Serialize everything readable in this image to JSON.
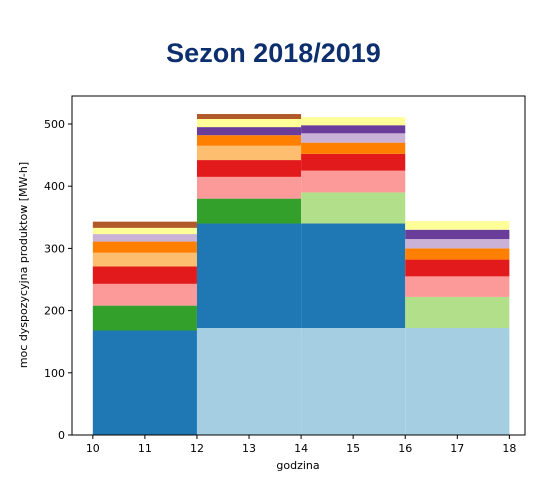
{
  "page": {
    "title": "Sezon 2018/2019"
  },
  "chart_data": {
    "type": "bar",
    "title": "Sezon 2018/2019",
    "xlabel": "godzina",
    "ylabel": "moc dyspozycyjna produktow [MW-h]",
    "xlim": [
      9.6,
      18.3
    ],
    "ylim": [
      0,
      545
    ],
    "xticks": [
      10,
      11,
      12,
      13,
      14,
      15,
      16,
      17,
      18
    ],
    "yticks": [
      0,
      100,
      200,
      300,
      400,
      500
    ],
    "grid": false,
    "legend": "none",
    "bars": [
      {
        "x0": 10,
        "x1": 12,
        "segments": [
          {
            "value": 168,
            "color": "#1f78b4"
          },
          {
            "value": 40,
            "color": "#33a02c"
          },
          {
            "value": 35,
            "color": "#fb9a99"
          },
          {
            "value": 28,
            "color": "#e31a1c"
          },
          {
            "value": 22,
            "color": "#fdbf6f"
          },
          {
            "value": 18,
            "color": "#ff7f00"
          },
          {
            "value": 12,
            "color": "#cab2d6"
          },
          {
            "value": 10,
            "color": "#ffff99"
          },
          {
            "value": 10,
            "color": "#b15928"
          }
        ]
      },
      {
        "x0": 12,
        "x1": 14,
        "segments": [
          {
            "value": 172,
            "color": "#a6cee3"
          },
          {
            "value": 168,
            "color": "#1f78b4"
          },
          {
            "value": 40,
            "color": "#33a02c"
          },
          {
            "value": 35,
            "color": "#fb9a99"
          },
          {
            "value": 27,
            "color": "#e31a1c"
          },
          {
            "value": 23,
            "color": "#fdbf6f"
          },
          {
            "value": 17,
            "color": "#ff7f00"
          },
          {
            "value": 13,
            "color": "#6a3d9a"
          },
          {
            "value": 13,
            "color": "#ffff99"
          },
          {
            "value": 8,
            "color": "#b15928"
          }
        ]
      },
      {
        "x0": 14,
        "x1": 16,
        "segments": [
          {
            "value": 172,
            "color": "#a6cee3"
          },
          {
            "value": 168,
            "color": "#1f78b4"
          },
          {
            "value": 50,
            "color": "#b2df8a"
          },
          {
            "value": 35,
            "color": "#fb9a99"
          },
          {
            "value": 27,
            "color": "#e31a1c"
          },
          {
            "value": 18,
            "color": "#ff7f00"
          },
          {
            "value": 15,
            "color": "#cab2d6"
          },
          {
            "value": 13,
            "color": "#6a3d9a"
          },
          {
            "value": 13,
            "color": "#ffff99"
          }
        ]
      },
      {
        "x0": 16,
        "x1": 18,
        "segments": [
          {
            "value": 172,
            "color": "#a6cee3"
          },
          {
            "value": 50,
            "color": "#b2df8a"
          },
          {
            "value": 33,
            "color": "#fb9a99"
          },
          {
            "value": 27,
            "color": "#e31a1c"
          },
          {
            "value": 18,
            "color": "#ff7f00"
          },
          {
            "value": 15,
            "color": "#cab2d6"
          },
          {
            "value": 15,
            "color": "#6a3d9a"
          },
          {
            "value": 14,
            "color": "#ffff99"
          }
        ]
      }
    ]
  }
}
